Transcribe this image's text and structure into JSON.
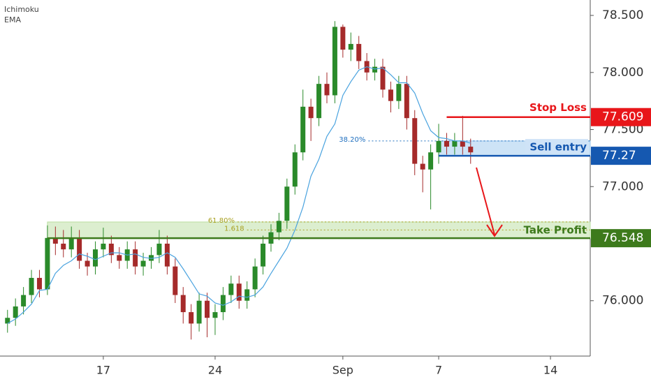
{
  "chart_data": {
    "type": "candlestick",
    "indicators": [
      "Ichimoku",
      "EMA"
    ],
    "up_color": "#2a8a2a",
    "down_color": "#a52a2a",
    "x": [
      11,
      11.5,
      12,
      12.5,
      13,
      13.5,
      14,
      14.5,
      15,
      15.5,
      16,
      16.5,
      17,
      17.5,
      18,
      18.5,
      19,
      19.5,
      20,
      20.5,
      21,
      21.5,
      22,
      22.5,
      23,
      23.5,
      24,
      24.5,
      25,
      25.5,
      26,
      26.5,
      27,
      27.5,
      28,
      28.5,
      29,
      29.5,
      30,
      30.5,
      31,
      31.5,
      32,
      32.5,
      33,
      33.5,
      34,
      34.5,
      35,
      35.5,
      36,
      36.5,
      37,
      37.5,
      38,
      38.5,
      39,
      39.5,
      40
    ],
    "open": [
      75.8,
      75.85,
      75.95,
      76.05,
      76.2,
      76.1,
      76.55,
      76.5,
      76.45,
      76.55,
      76.35,
      76.3,
      76.45,
      76.5,
      76.4,
      76.35,
      76.45,
      76.3,
      76.35,
      76.4,
      76.5,
      76.3,
      76.05,
      75.9,
      75.8,
      76.0,
      75.85,
      75.9,
      76.05,
      76.15,
      76.0,
      76.1,
      76.3,
      76.5,
      76.6,
      76.7,
      77.0,
      77.3,
      77.7,
      77.6,
      77.9,
      77.8,
      78.4,
      78.2,
      78.25,
      78.1,
      78.0,
      78.05,
      77.85,
      77.75,
      77.9,
      77.6,
      77.2,
      77.15,
      77.3,
      77.4,
      77.35,
      77.4,
      77.35
    ],
    "high": [
      75.92,
      76.02,
      76.12,
      76.27,
      76.27,
      76.66,
      76.65,
      76.62,
      76.65,
      76.62,
      76.42,
      76.52,
      76.64,
      76.57,
      76.47,
      76.52,
      76.52,
      76.42,
      76.47,
      76.62,
      76.57,
      76.37,
      76.12,
      75.97,
      76.07,
      76.07,
      75.97,
      76.12,
      76.22,
      76.22,
      76.17,
      76.37,
      76.57,
      76.67,
      76.77,
      77.07,
      77.37,
      77.85,
      77.77,
      77.97,
      78.0,
      78.45,
      78.42,
      78.35,
      78.32,
      78.17,
      78.12,
      78.12,
      77.92,
      77.97,
      77.97,
      77.67,
      77.27,
      77.37,
      77.55,
      77.47,
      77.47,
      77.62,
      77.42
    ],
    "low": [
      75.72,
      75.78,
      75.88,
      75.98,
      76.03,
      76.05,
      76.4,
      76.38,
      76.38,
      76.28,
      76.22,
      76.23,
      76.38,
      76.33,
      76.28,
      76.28,
      76.23,
      76.22,
      76.28,
      76.33,
      76.23,
      75.98,
      75.8,
      75.66,
      75.73,
      75.68,
      75.7,
      75.83,
      75.98,
      75.93,
      75.93,
      76.03,
      76.23,
      76.43,
      76.53,
      76.63,
      76.93,
      77.23,
      77.4,
      77.53,
      77.73,
      77.73,
      78.13,
      78.1,
      78.03,
      77.93,
      77.93,
      77.78,
      77.65,
      77.68,
      77.5,
      77.1,
      76.95,
      76.8,
      77.2,
      77.28,
      77.28,
      77.28,
      77.2
    ],
    "close": [
      75.85,
      75.95,
      76.05,
      76.2,
      76.1,
      76.55,
      76.5,
      76.45,
      76.55,
      76.35,
      76.3,
      76.45,
      76.5,
      76.4,
      76.35,
      76.45,
      76.3,
      76.35,
      76.4,
      76.5,
      76.3,
      76.05,
      75.9,
      75.8,
      76.0,
      75.85,
      75.9,
      76.05,
      76.15,
      76.0,
      76.1,
      76.3,
      76.5,
      76.6,
      76.7,
      77.0,
      77.3,
      77.7,
      77.6,
      77.9,
      77.8,
      78.4,
      78.2,
      78.25,
      78.1,
      78.0,
      78.05,
      77.85,
      77.75,
      77.9,
      77.6,
      77.2,
      77.15,
      77.3,
      77.4,
      77.35,
      77.4,
      77.35,
      77.3
    ],
    "ema": {
      "color": "#4aa3df",
      "values": [
        75.8,
        75.84,
        75.9,
        75.97,
        76.09,
        76.1,
        76.24,
        76.31,
        76.35,
        76.41,
        76.39,
        76.36,
        76.39,
        76.42,
        76.42,
        76.4,
        76.41,
        76.38,
        76.37,
        76.38,
        76.42,
        76.38,
        76.28,
        76.17,
        76.06,
        76.04,
        75.98,
        75.96,
        75.99,
        76.04,
        76.03,
        76.05,
        76.12,
        76.24,
        76.35,
        76.46,
        76.62,
        76.82,
        77.09,
        77.24,
        77.44,
        77.55,
        77.8,
        77.92,
        78.02,
        78.05,
        78.03,
        78.04,
        77.98,
        77.91,
        77.91,
        77.82,
        77.64,
        77.49,
        77.43,
        77.42,
        77.4,
        77.4,
        77.38
      ]
    },
    "xlim": [
      10.53,
      47.49
    ],
    "xticks": [
      17,
      24,
      {
        "value": 32,
        "label": "Sep"
      },
      {
        "value": 38,
        "label": "7"
      },
      {
        "value": 45,
        "label": "14"
      }
    ],
    "ylim": [
      75.515,
      78.635
    ],
    "yticks": [
      {
        "value": 76,
        "label": "76.000"
      },
      {
        "value": 77,
        "label": "77.000"
      },
      {
        "value": 77.5,
        "label": "77.500"
      },
      {
        "value": 78,
        "label": "78.000"
      },
      {
        "value": 78.5,
        "label": "78.500"
      }
    ],
    "levels": [
      {
        "name": "Stop Loss",
        "value": 77.609,
        "start": 38.5,
        "color": "#e8161a"
      },
      {
        "name": "Sell entry",
        "value": 77.27,
        "start": 38,
        "color": "#1558b0"
      },
      {
        "name": "Take Profit",
        "value": 76.548,
        "start": 13.5,
        "color": "#3d7a1c"
      }
    ],
    "zones": [
      {
        "from": 77.27,
        "to": 77.4,
        "start": 38,
        "color": "#9cc7ee"
      },
      {
        "from": 76.548,
        "to": 76.69,
        "start": 13.5,
        "color": "#b9dea0"
      }
    ],
    "fib": [
      {
        "label": "38.20%",
        "value": 77.4,
        "start": 31.5,
        "color": "#1f6fbf"
      },
      {
        "label": "61.80%",
        "value": 76.69,
        "start": 23.3,
        "color": "#a8a020"
      },
      {
        "label": "1.618",
        "value": 76.62,
        "start": 23.9,
        "color": "#a8a020"
      }
    ]
  }
}
